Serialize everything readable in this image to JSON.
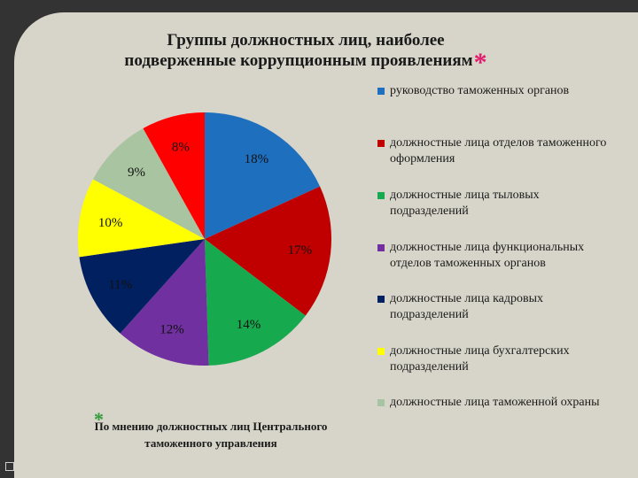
{
  "title": {
    "line1": "Группы должностных лиц, наиболее",
    "line2": "подверженные коррупционным проявлениям",
    "star": "*",
    "star_color": "#e31b6d"
  },
  "chart_data": {
    "type": "pie",
    "title": "Группы должностных лиц, наиболее подверженные коррупционным проявлениям",
    "legend_position": "right",
    "labels": [
      "руководство таможенных органов",
      "должностные лица отделов таможенного оформления",
      "должностные лица тыловых подразделений",
      "должностные лица функциональных отделов таможенных органов",
      "должностные лица кадровых подразделений",
      "должностные лица бухгалтерских подразделений",
      "должностные лица таможенной охраны",
      ""
    ],
    "values": [
      18,
      17,
      14,
      12,
      11,
      10,
      9,
      8
    ],
    "value_labels": [
      "18%",
      "17%",
      "14%",
      "12%",
      "11%",
      "10%",
      "9%",
      "8%"
    ],
    "colors": [
      "#1f6fbf",
      "#c00000",
      "#17a94e",
      "#7030a0",
      "#002060",
      "#ffff00",
      "#a9c4a0",
      "#ff0000"
    ]
  },
  "legend": [
    {
      "text": "руководство таможенных органов",
      "color": "#1f6fbf"
    },
    {
      "text": "должностные лица отделов таможенного оформления",
      "color": "#c00000"
    },
    {
      "text": "должностные лица тыловых подразделений",
      "color": "#17a94e"
    },
    {
      "text": "должностные лица функциональных отделов таможенных органов",
      "color": "#7030a0"
    },
    {
      "text": "должностные лица кадровых подразделений",
      "color": "#002060"
    },
    {
      "text": "должностные лица бухгалтерских подразделений",
      "color": "#ffff00"
    },
    {
      "text": "должностные лица таможенной охраны",
      "color": "#a9c4a0"
    }
  ],
  "footnote": {
    "star": "*",
    "text_line1": "По мнению должностных лиц Центрального",
    "text_line2": "таможенного управления",
    "star_color": "#2e9a3a"
  }
}
